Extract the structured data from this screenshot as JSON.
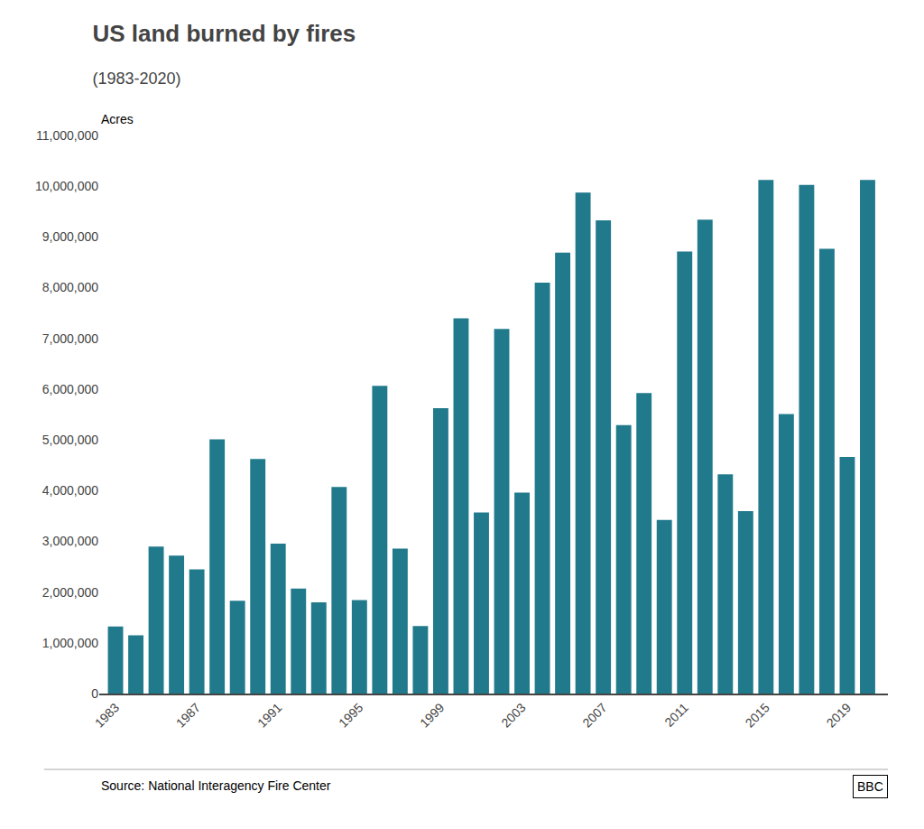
{
  "chart_data": {
    "type": "bar",
    "title": "US land burned by fires",
    "subtitle": "(1983-2020)",
    "ylabel": "Acres",
    "annotations": [
      "Source: National Interagency Fire Center",
      "BBC"
    ],
    "color": "#217a8c",
    "x": [
      1983,
      1984,
      1985,
      1986,
      1987,
      1988,
      1989,
      1990,
      1991,
      1992,
      1993,
      1994,
      1995,
      1996,
      1997,
      1998,
      1999,
      2000,
      2001,
      2002,
      2003,
      2004,
      2005,
      2006,
      2007,
      2008,
      2009,
      2010,
      2011,
      2012,
      2013,
      2014,
      2015,
      2016,
      2017,
      2018,
      2019,
      2020
    ],
    "values": [
      1323666,
      1148409,
      2896176,
      2719162,
      2447296,
      5009290,
      1827310,
      4621621,
      2953578,
      2069929,
      1797574,
      4073579,
      1840546,
      6065998,
      2856959,
      1329704,
      5626093,
      7393493,
      3570911,
      7184712,
      3960842,
      8097880,
      8689389,
      9873745,
      9328045,
      5292468,
      5921786,
      3422724,
      8711367,
      9338759,
      4319546,
      3595613,
      10125149,
      5509995,
      10026086,
      8767492,
      4664364,
      10122336
    ],
    "xlim": [
      1982.2,
      2021.0
    ],
    "xticks": [
      1983,
      1987,
      1991,
      1995,
      1999,
      2003,
      2007,
      2011,
      2015,
      2019
    ],
    "ylim": [
      0,
      11000000
    ],
    "yticks": [
      0,
      {
        "value": 1000000,
        "label": "1,000,000"
      },
      {
        "value": 2000000,
        "label": "2,000,000"
      },
      {
        "value": 3000000,
        "label": "3,000,000"
      },
      {
        "value": 4000000,
        "label": "4,000,000"
      },
      {
        "value": 5000000,
        "label": "5,000,000"
      },
      {
        "value": 6000000,
        "label": "6,000,000"
      },
      {
        "value": 7000000,
        "label": "7,000,000"
      },
      {
        "value": 8000000,
        "label": "8,000,000"
      },
      {
        "value": 9000000,
        "label": "9,000,000"
      },
      {
        "value": 10000000,
        "label": "10,000,000"
      },
      {
        "value": 11000000,
        "label": "11,000,000"
      }
    ],
    "grid": false
  }
}
